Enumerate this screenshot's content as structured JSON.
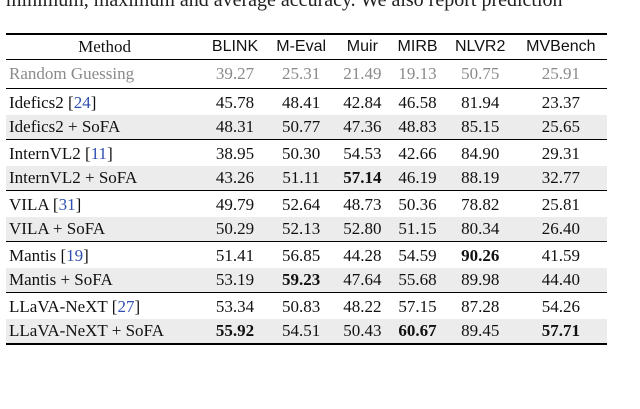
{
  "caption_fragment": "minimum, maximum and average accuracy. We also report prediction",
  "table": {
    "columns": [
      "Method",
      "BLINK",
      "M-Eval",
      "Muir",
      "MIRB",
      "NLVR2",
      "MVBench"
    ],
    "rows": [
      {
        "method": "Random Guessing",
        "cite": "",
        "values": [
          "39.27",
          "25.31",
          "21.49",
          "19.13",
          "50.75",
          "25.91"
        ],
        "bold": []
      },
      {
        "method": "Idefics2",
        "cite": "24",
        "values": [
          "45.78",
          "48.41",
          "42.84",
          "46.58",
          "81.94",
          "23.37"
        ],
        "bold": []
      },
      {
        "method": "Idefics2 + SoFA",
        "cite": "",
        "values": [
          "48.31",
          "50.77",
          "47.36",
          "48.83",
          "85.15",
          "25.65"
        ],
        "bold": []
      },
      {
        "method": "InternVL2",
        "cite": "11",
        "values": [
          "38.95",
          "50.30",
          "54.53",
          "42.66",
          "84.90",
          "29.31"
        ],
        "bold": []
      },
      {
        "method": "InternVL2 + SoFA",
        "cite": "",
        "values": [
          "43.26",
          "51.11",
          "57.14",
          "46.19",
          "88.19",
          "32.77"
        ],
        "bold": [
          2
        ]
      },
      {
        "method": "VILA",
        "cite": "31",
        "values": [
          "49.79",
          "52.64",
          "48.73",
          "50.36",
          "78.82",
          "25.81"
        ],
        "bold": []
      },
      {
        "method": "VILA + SoFA",
        "cite": "",
        "values": [
          "50.29",
          "52.13",
          "52.80",
          "51.15",
          "80.34",
          "26.40"
        ],
        "bold": []
      },
      {
        "method": "Mantis",
        "cite": "19",
        "values": [
          "51.41",
          "56.85",
          "44.28",
          "54.59",
          "90.26",
          "41.59"
        ],
        "bold": [
          4
        ]
      },
      {
        "method": "Mantis + SoFA",
        "cite": "",
        "values": [
          "53.19",
          "59.23",
          "47.64",
          "55.68",
          "89.98",
          "44.40"
        ],
        "bold": [
          1
        ]
      },
      {
        "method": "LLaVA-NeXT",
        "cite": "27",
        "values": [
          "53.34",
          "50.83",
          "48.22",
          "57.15",
          "87.28",
          "54.26"
        ],
        "bold": []
      },
      {
        "method": "LLaVA-NeXT + SoFA",
        "cite": "",
        "values": [
          "55.92",
          "54.51",
          "50.43",
          "60.67",
          "89.45",
          "57.71"
        ],
        "bold": [
          0,
          3,
          5
        ]
      }
    ]
  }
}
